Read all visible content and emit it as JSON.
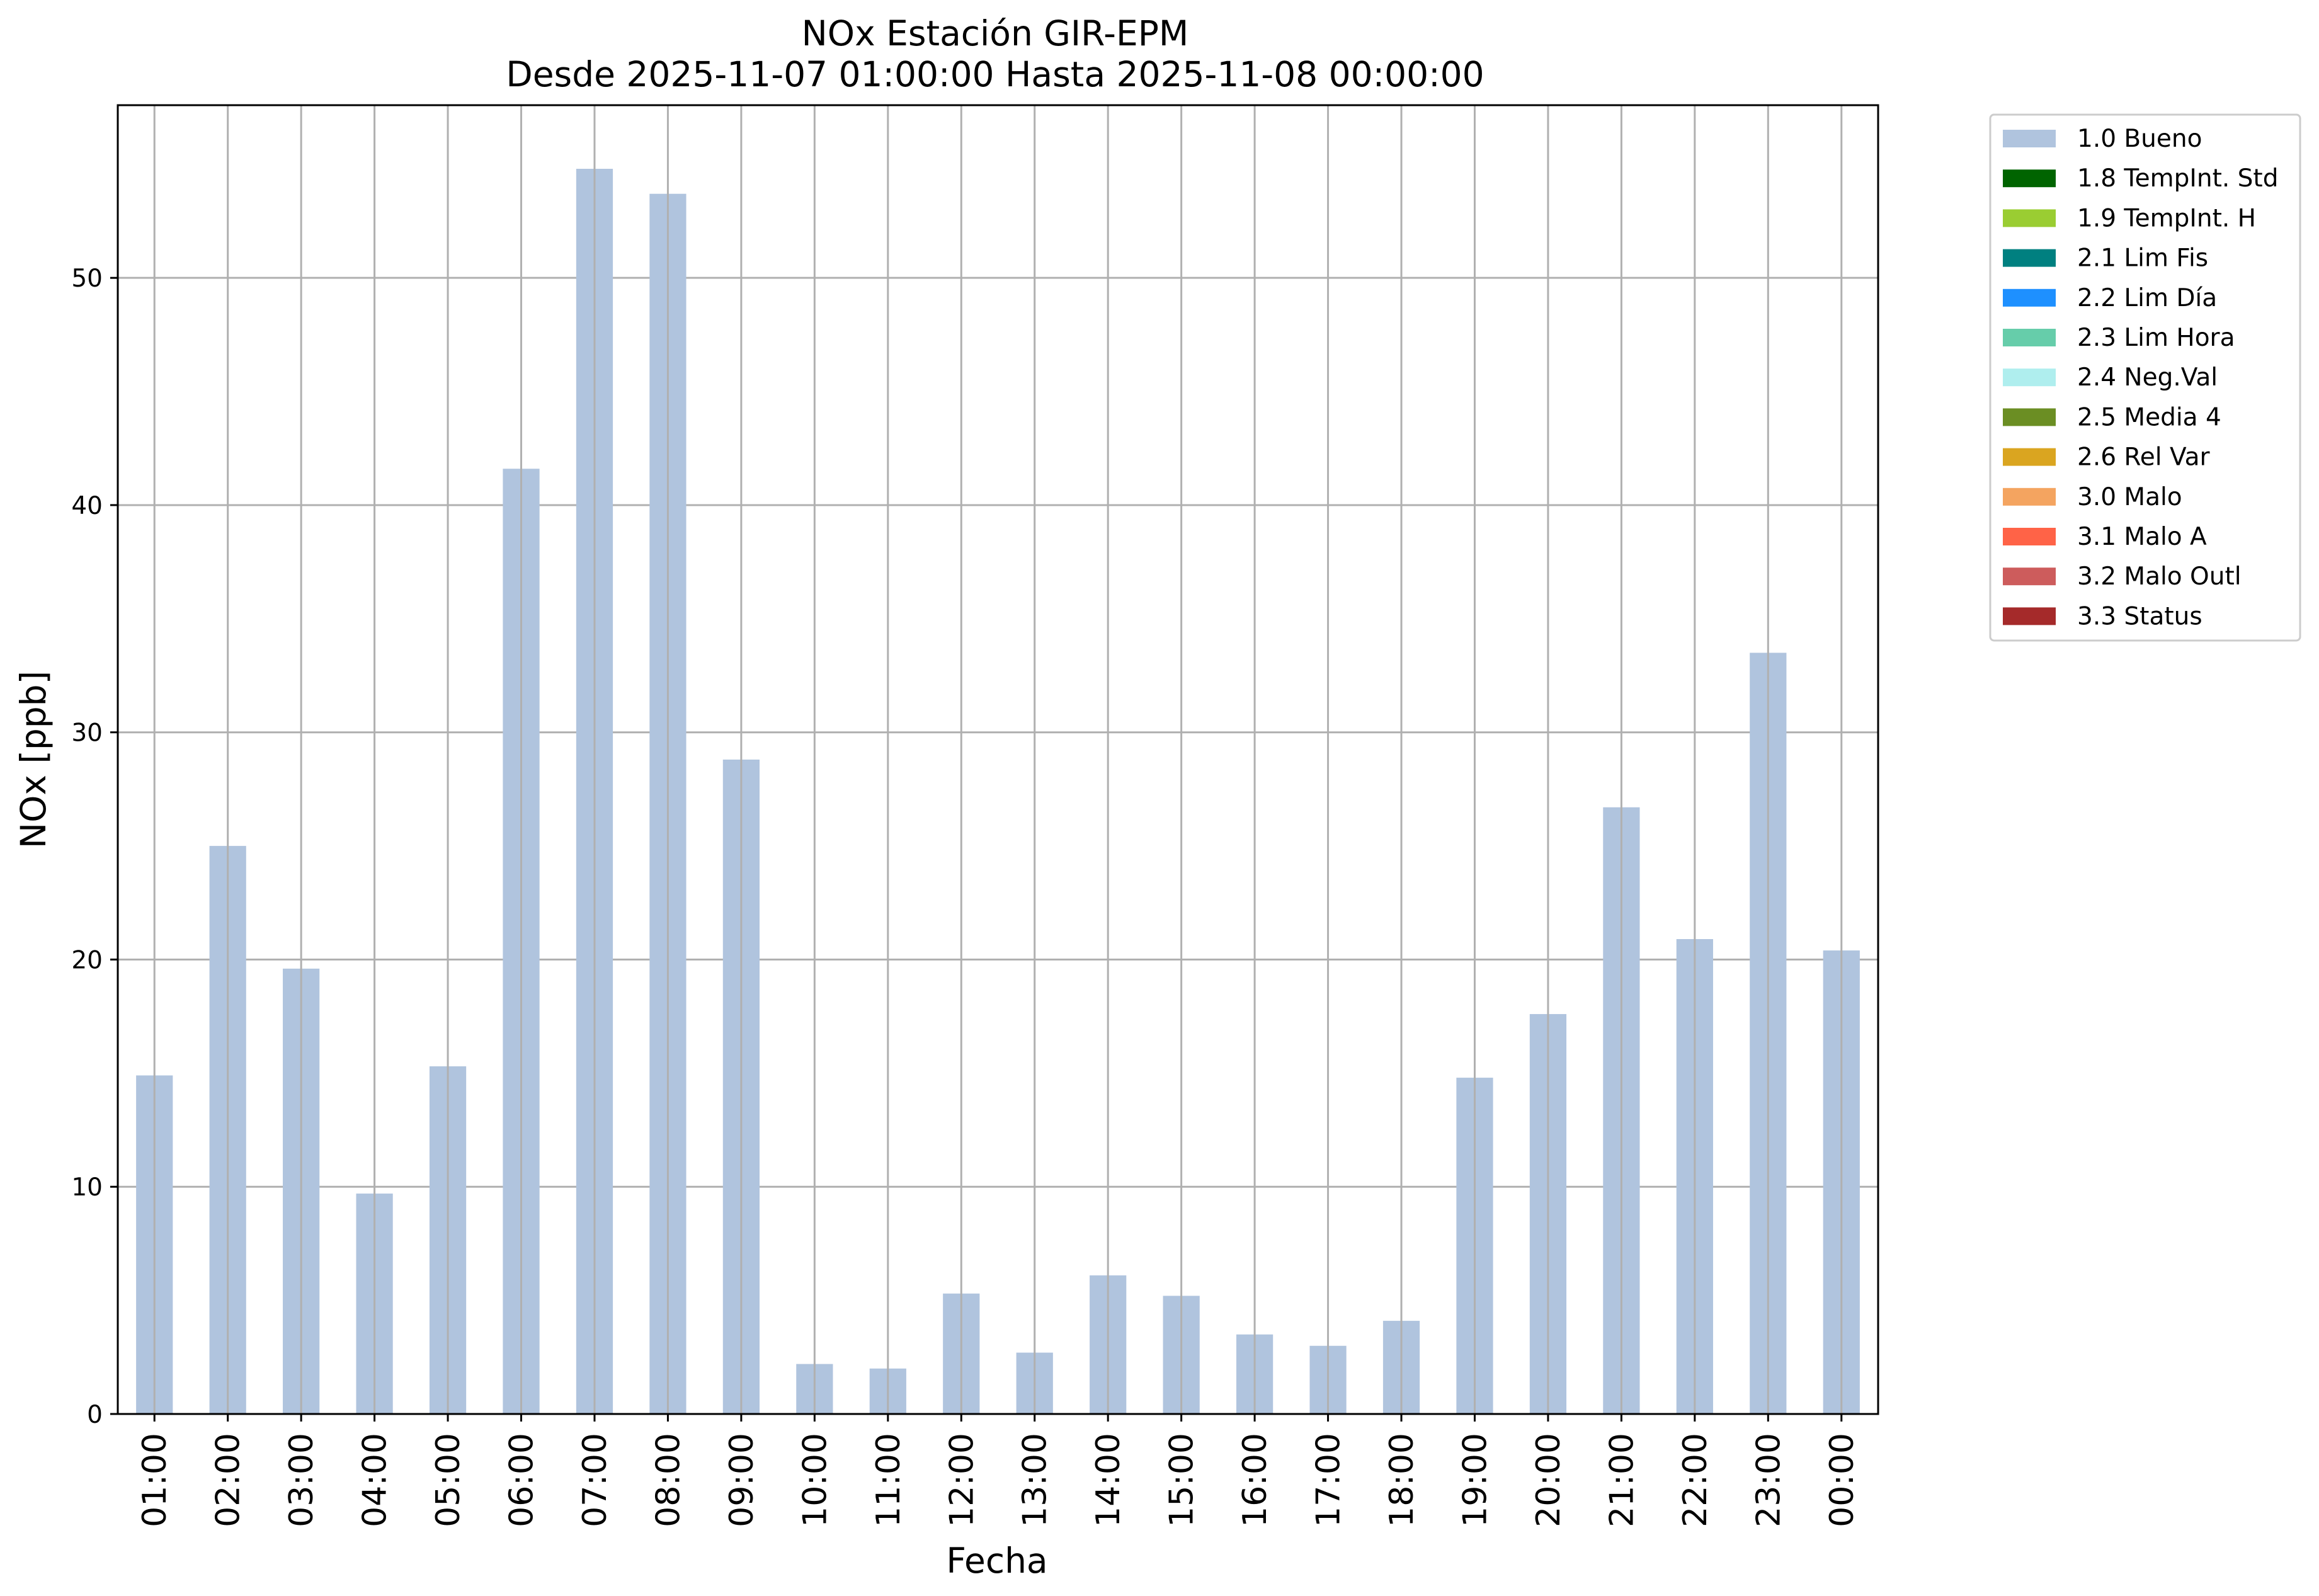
{
  "chart_data": {
    "type": "bar",
    "title": "NOx Estación GIR-EPM",
    "subtitle": "Desde 2025-11-07 01:00:00 Hasta 2025-11-08 00:00:00",
    "xlabel": "Fecha",
    "ylabel": "NOx [ppb]",
    "ylim": [
      0,
      57.6
    ],
    "yticks": [
      0,
      10,
      20,
      30,
      40,
      50
    ],
    "grid": true,
    "legend_position": "outside top-right",
    "categories": [
      "01:00",
      "02:00",
      "03:00",
      "04:00",
      "05:00",
      "06:00",
      "07:00",
      "08:00",
      "09:00",
      "10:00",
      "11:00",
      "12:00",
      "13:00",
      "14:00",
      "15:00",
      "16:00",
      "17:00",
      "18:00",
      "19:00",
      "20:00",
      "21:00",
      "22:00",
      "23:00",
      "00:00"
    ],
    "series": [
      {
        "name": "1.0 Bueno",
        "color": "#b0c4de",
        "values": [
          14.9,
          25.0,
          19.6,
          9.7,
          15.3,
          41.6,
          54.8,
          53.7,
          28.8,
          2.2,
          2.0,
          5.3,
          2.7,
          6.1,
          5.2,
          3.5,
          3.0,
          4.1,
          14.8,
          17.6,
          26.7,
          20.9,
          33.5,
          20.4
        ]
      }
    ],
    "legend": [
      {
        "label": "1.0 Bueno",
        "color": "#b0c4de"
      },
      {
        "label": "1.8 TempInt. Std",
        "color": "#006400"
      },
      {
        "label": "1.9 TempInt. H",
        "color": "#9acd32"
      },
      {
        "label": "2.1 Lim Fis",
        "color": "#008080"
      },
      {
        "label": "2.2 Lim Día",
        "color": "#1e90ff"
      },
      {
        "label": "2.3 Lim Hora",
        "color": "#66cdaa"
      },
      {
        "label": "2.4 Neg.Val",
        "color": "#afeeee"
      },
      {
        "label": "2.5 Media 4",
        "color": "#6b8e23"
      },
      {
        "label": "2.6 Rel Var",
        "color": "#daa520"
      },
      {
        "label": "3.0 Malo",
        "color": "#f4a460"
      },
      {
        "label": "3.1 Malo A",
        "color": "#ff6347"
      },
      {
        "label": "3.2 Malo Outl",
        "color": "#cd5c5c"
      },
      {
        "label": "3.3 Status",
        "color": "#a52a2a"
      }
    ]
  }
}
